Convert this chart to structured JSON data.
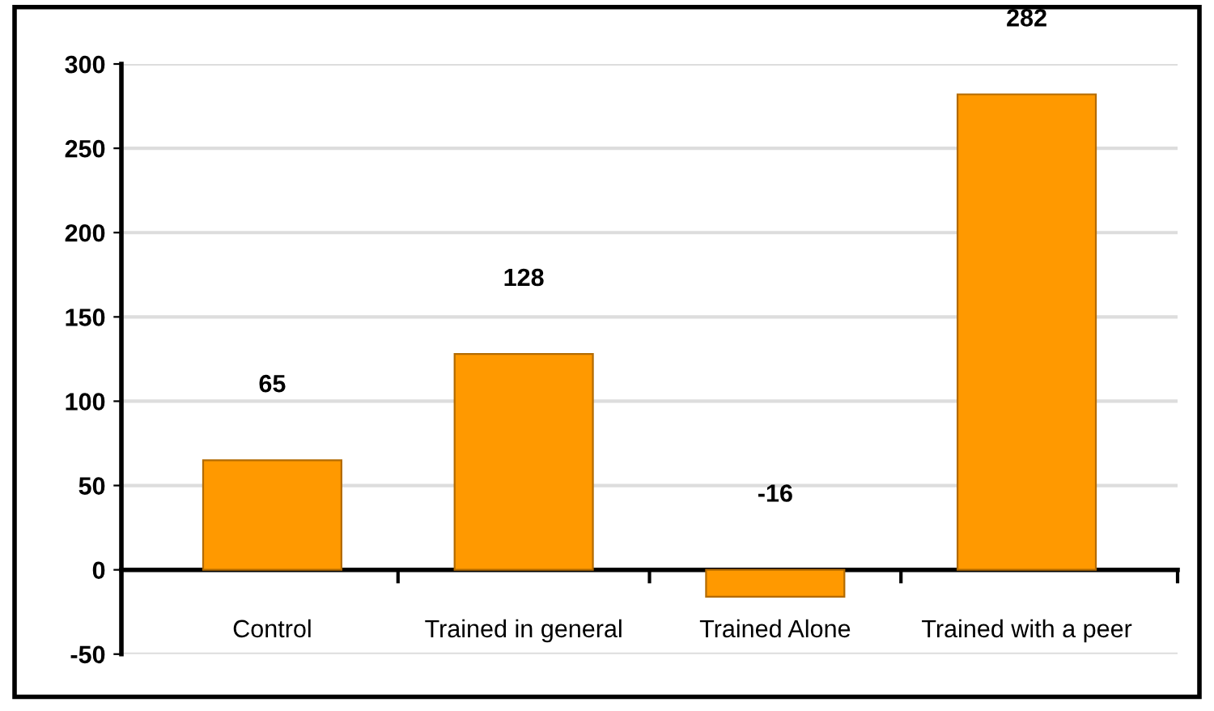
{
  "chart_data": {
    "type": "bar",
    "categories": [
      "Control",
      "Trained in general",
      "Trained Alone",
      "Trained with a peer"
    ],
    "values": [
      65,
      128,
      -16,
      282
    ],
    "color": "#ff9900",
    "data_labels": true,
    "ylim": [
      -50,
      300
    ],
    "yticks": [
      -50,
      0,
      50,
      100,
      150,
      200,
      250,
      300
    ],
    "grid": "y",
    "legend": false
  }
}
